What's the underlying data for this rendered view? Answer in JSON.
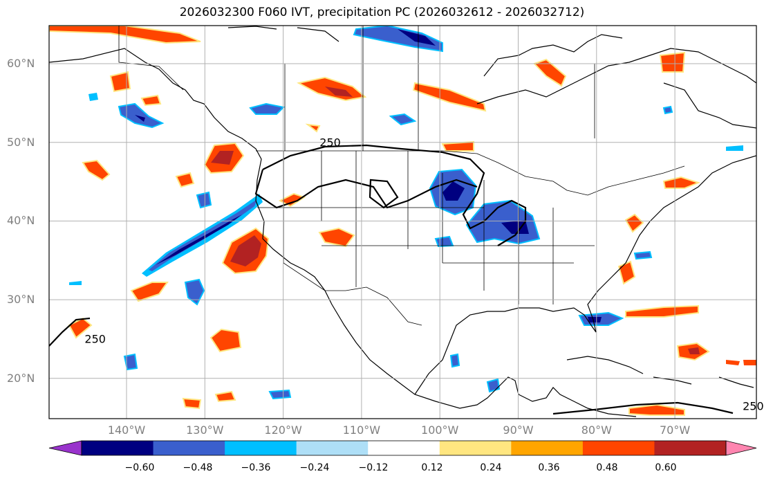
{
  "title": "2026032300 F060 IVT, precipitation PC (2026032612 - 2026032712)",
  "map": {
    "lat_labels": [
      {
        "deg": 60,
        "text": "60°N"
      },
      {
        "deg": 50,
        "text": "50°N"
      },
      {
        "deg": 40,
        "text": "40°N"
      },
      {
        "deg": 30,
        "text": "30°N"
      },
      {
        "deg": 20,
        "text": "20°N"
      }
    ],
    "lon_labels": [
      {
        "deg": -140,
        "text": "140°W"
      },
      {
        "deg": -130,
        "text": "130°W"
      },
      {
        "deg": -120,
        "text": "120°W"
      },
      {
        "deg": -110,
        "text": "110°W"
      },
      {
        "deg": -100,
        "text": "100°W"
      },
      {
        "deg": -90,
        "text": "90°W"
      },
      {
        "deg": -80,
        "text": "80°W"
      },
      {
        "deg": -70,
        "text": "70°W"
      }
    ],
    "contour_labels": [
      {
        "text": "250",
        "lon": -114,
        "lat": 49.5
      },
      {
        "text": "250",
        "lon": -144,
        "lat": 24.5
      },
      {
        "text": "250",
        "lon": -60,
        "lat": 16
      }
    ],
    "colors": {
      "neg_060": "#9933cc",
      "neg_048": "#000080",
      "neg_036": "#3a5fcd",
      "neg_024": "#00bfff",
      "neg_012": "#aedff7",
      "pos_012": "#ffe680",
      "pos_024": "#ffa500",
      "pos_036": "#ff4500",
      "pos_048": "#b22222",
      "pos_060": "#ff85b0"
    }
  },
  "colorbar": {
    "ticks": [
      "−0.60",
      "−0.48",
      "−0.36",
      "−0.24",
      "−0.12",
      "0.12",
      "0.24",
      "0.36",
      "0.48",
      "0.60"
    ],
    "colors": [
      "#9933cc",
      "#000080",
      "#3a5fcd",
      "#00bfff",
      "#aedff7",
      "#ffffff",
      "#ffe680",
      "#ffa500",
      "#ff4500",
      "#b22222",
      "#ff85b0"
    ]
  }
}
